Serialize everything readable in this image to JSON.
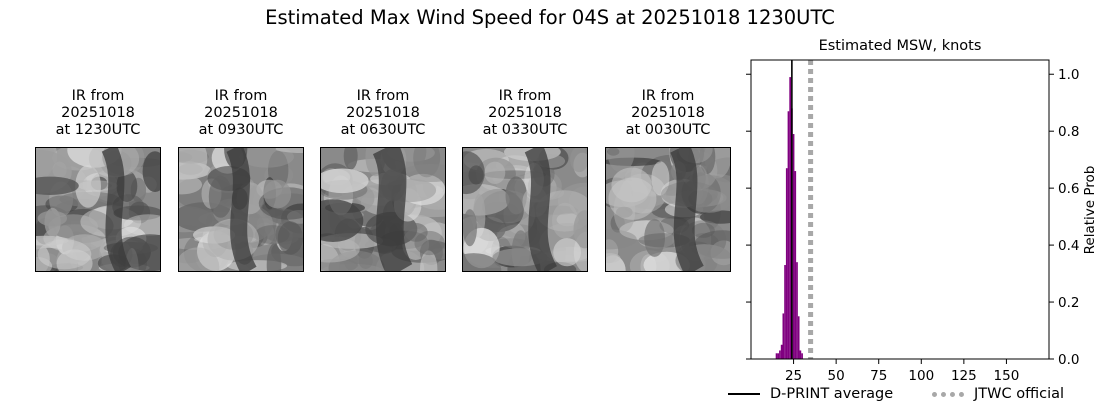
{
  "suptitle": "Estimated Max Wind Speed for 04S at 20251018 1230UTC",
  "ir_panels": [
    {
      "line1": "IR from",
      "line2": "20251018",
      "line3": "at 1230UTC",
      "seed": 11
    },
    {
      "line1": "IR from",
      "line2": "20251018",
      "line3": "at 0930UTC",
      "seed": 23
    },
    {
      "line1": "IR from",
      "line2": "20251018",
      "line3": "at 0630UTC",
      "seed": 37
    },
    {
      "line1": "IR from",
      "line2": "20251018",
      "line3": "at 0330UTC",
      "seed": 53
    },
    {
      "line1": "IR from",
      "line2": "20251018",
      "line3": "at 0030UTC",
      "seed": 71
    }
  ],
  "chart_data": {
    "type": "bar",
    "title": "Estimated MSW, knots",
    "xlabel": "",
    "ylabel": "Relative Prob",
    "xlim": [
      0,
      175
    ],
    "ylim": [
      0,
      1.05
    ],
    "xticks": [
      25,
      50,
      75,
      100,
      125,
      150
    ],
    "yticks": [
      0.0,
      0.2,
      0.4,
      0.6,
      0.8,
      1.0
    ],
    "ytick_labels": [
      "0.0",
      "0.2",
      "0.4",
      "0.6",
      "0.8",
      "1.0"
    ],
    "y_axis_side": "right",
    "bar_color": "#800080",
    "bin_width": 1,
    "bins": [
      {
        "x": 15,
        "value": 0.02
      },
      {
        "x": 16,
        "value": 0.02
      },
      {
        "x": 17,
        "value": 0.03
      },
      {
        "x": 18,
        "value": 0.05
      },
      {
        "x": 19,
        "value": 0.16
      },
      {
        "x": 20,
        "value": 0.33
      },
      {
        "x": 21,
        "value": 0.67
      },
      {
        "x": 22,
        "value": 0.87
      },
      {
        "x": 23,
        "value": 0.99
      },
      {
        "x": 24,
        "value": 0.88
      },
      {
        "x": 25,
        "value": 0.79
      },
      {
        "x": 26,
        "value": 0.66
      },
      {
        "x": 27,
        "value": 0.34
      },
      {
        "x": 28,
        "value": 0.15
      },
      {
        "x": 29,
        "value": 0.03
      },
      {
        "x": 30,
        "value": 0.02
      }
    ],
    "lines": [
      {
        "name": "D-PRINT average",
        "x": 24,
        "color": "#000000",
        "style": "solid"
      },
      {
        "name": "JTWC official",
        "x": 35,
        "color": "#a8a8a8",
        "style": "dotted"
      }
    ],
    "legend_position": "bottom"
  }
}
